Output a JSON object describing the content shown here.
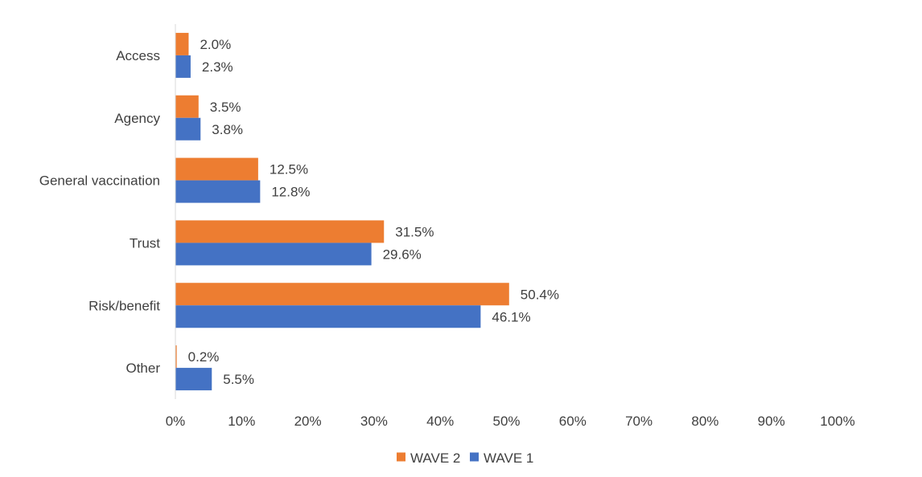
{
  "chart_data": {
    "type": "bar",
    "orientation": "horizontal",
    "categories": [
      "Access",
      "Agency",
      "General vaccination",
      "Trust",
      "Risk/benefit",
      "Other"
    ],
    "series": [
      {
        "name": "WAVE 2",
        "color": "#ED7D31",
        "values": [
          2.0,
          3.5,
          12.5,
          31.5,
          50.4,
          0.2
        ]
      },
      {
        "name": "WAVE 1",
        "color": "#4472C4",
        "values": [
          2.3,
          3.8,
          12.8,
          29.6,
          46.1,
          5.5
        ]
      }
    ],
    "value_labels": {
      "WAVE 2": [
        "2.0%",
        "3.5%",
        "12.5%",
        "31.5%",
        "50.4%",
        "0.2%"
      ],
      "WAVE 1": [
        "2.3%",
        "3.8%",
        "12.8%",
        "29.6%",
        "46.1%",
        "5.5%"
      ]
    },
    "xlim": [
      0,
      100
    ],
    "x_ticks": [
      0,
      10,
      20,
      30,
      40,
      50,
      60,
      70,
      80,
      90,
      100
    ],
    "x_tick_labels": [
      "0%",
      "10%",
      "20%",
      "30%",
      "40%",
      "50%",
      "60%",
      "70%",
      "80%",
      "90%",
      "100%"
    ],
    "title": "",
    "xlabel": "",
    "ylabel": "",
    "grid": false,
    "legend_position": "bottom"
  }
}
